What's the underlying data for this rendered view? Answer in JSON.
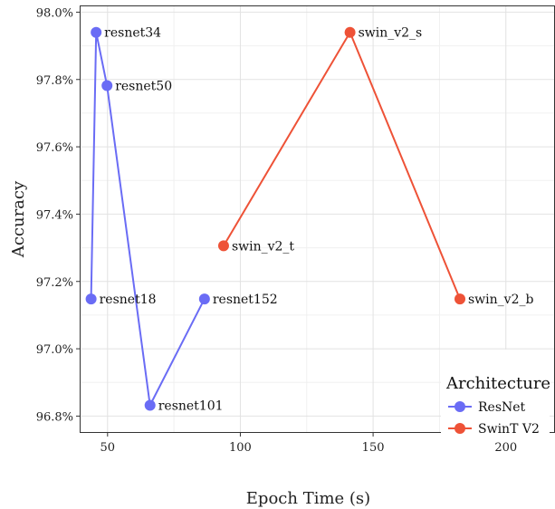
{
  "chart_data": {
    "type": "scatter",
    "xlabel": "Epoch Time (s)",
    "ylabel": "Accuracy",
    "xlim": [
      39.5,
      218.5
    ],
    "ylim": [
      96.75,
      98.02
    ],
    "x_ticks": [
      50,
      100,
      150,
      200
    ],
    "y_ticks": [
      96.8,
      97.0,
      97.2,
      97.4,
      97.6,
      97.8,
      98.0
    ],
    "y_tick_format": "percent_1dp",
    "grid": true,
    "legend": {
      "title": "Architecture",
      "placement": "bottom-right"
    },
    "series": [
      {
        "name": "ResNet",
        "color": "#6a6cf5",
        "points": [
          {
            "label": "resnet18",
            "x": 43.8,
            "y": 97.148
          },
          {
            "label": "resnet34",
            "x": 45.7,
            "y": 97.94
          },
          {
            "label": "resnet50",
            "x": 49.8,
            "y": 97.782
          },
          {
            "label": "resnet101",
            "x": 66.0,
            "y": 96.832
          },
          {
            "label": "resnet152",
            "x": 86.5,
            "y": 97.148
          }
        ]
      },
      {
        "name": "SwinT V2",
        "color": "#ee5237",
        "points": [
          {
            "label": "swin_v2_t",
            "x": 93.7,
            "y": 97.306
          },
          {
            "label": "swin_v2_s",
            "x": 141.3,
            "y": 97.94
          },
          {
            "label": "swin_v2_b",
            "x": 182.7,
            "y": 97.148
          }
        ]
      }
    ]
  }
}
